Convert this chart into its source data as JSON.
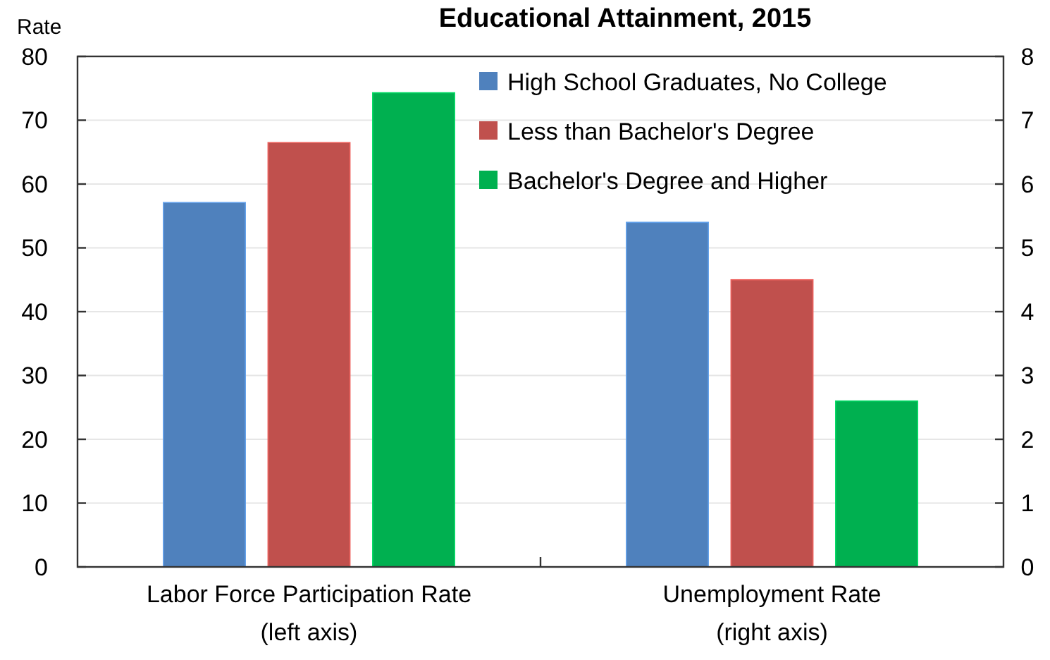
{
  "chart_data": {
    "type": "bar",
    "title": "Educational Attainment, 2015",
    "ylabel": "Rate",
    "categories": [
      "Labor Force Participation Rate\n(left axis)",
      "Unemployment Rate\n(right axis)"
    ],
    "series": [
      {
        "name": "High School Graduates, No College",
        "color": "#4f81bd",
        "values": [
          57.1,
          null
        ]
      },
      {
        "name": "Less than Bachelor's Degree",
        "color": "#c0504d",
        "values": [
          66.5,
          null
        ]
      },
      {
        "name": "Bachelor's Degree and Higher",
        "color": "#00b050",
        "values": [
          74.3,
          null
        ]
      },
      {
        "color": "#4f81bd",
        "values": [
          null,
          5.4
        ],
        "axis": "y2"
      },
      {
        "color": "#c0504d",
        "values": [
          null,
          4.5
        ],
        "axis": "y2"
      },
      {
        "color": "#00b050",
        "values": [
          null,
          2.6
        ],
        "axis": "y2"
      }
    ],
    "ylim": [
      0,
      80
    ],
    "yticks": [
      0,
      10,
      20,
      30,
      40,
      50,
      60,
      70,
      80
    ],
    "y2lim": [
      0,
      8
    ],
    "y2ticks": [
      0,
      1,
      2,
      3,
      4,
      5,
      6,
      7,
      8
    ],
    "grid": "y",
    "legend": "top right"
  }
}
